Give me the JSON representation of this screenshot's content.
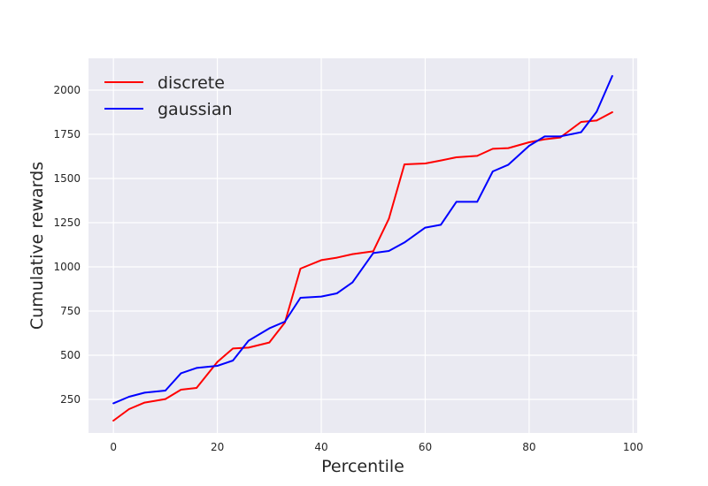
{
  "chart_data": {
    "type": "line",
    "title": "",
    "xlabel": "Percentile",
    "ylabel": "Cumulative rewards",
    "xlim": [
      -4.8,
      100.8
    ],
    "ylim": [
      60,
      2180
    ],
    "xticks": [
      0,
      20,
      40,
      60,
      80,
      100
    ],
    "yticks": [
      250,
      500,
      750,
      1000,
      1250,
      1500,
      1750,
      2000
    ],
    "grid": true,
    "legend_position": "top-left",
    "x": [
      0,
      3,
      6,
      10,
      13,
      16,
      20,
      23,
      26,
      30,
      33,
      36,
      40,
      43,
      46,
      50,
      53,
      56,
      60,
      63,
      66,
      70,
      73,
      76,
      80,
      83,
      86,
      90,
      93,
      96
    ],
    "series": [
      {
        "name": "discrete",
        "color": "#ff0000",
        "values": [
          130,
          195,
          232,
          252,
          305,
          315,
          462,
          538,
          543,
          572,
          685,
          990,
          1038,
          1052,
          1072,
          1088,
          1272,
          1580,
          1585,
          1602,
          1620,
          1628,
          1668,
          1672,
          1705,
          1722,
          1732,
          1820,
          1828,
          1875
        ]
      },
      {
        "name": "gaussian",
        "color": "#0000ff",
        "values": [
          228,
          265,
          288,
          300,
          398,
          428,
          440,
          470,
          582,
          652,
          690,
          825,
          832,
          850,
          912,
          1078,
          1090,
          1138,
          1222,
          1238,
          1368,
          1368,
          1540,
          1578,
          1685,
          1738,
          1738,
          1762,
          1878,
          2080
        ]
      }
    ]
  }
}
